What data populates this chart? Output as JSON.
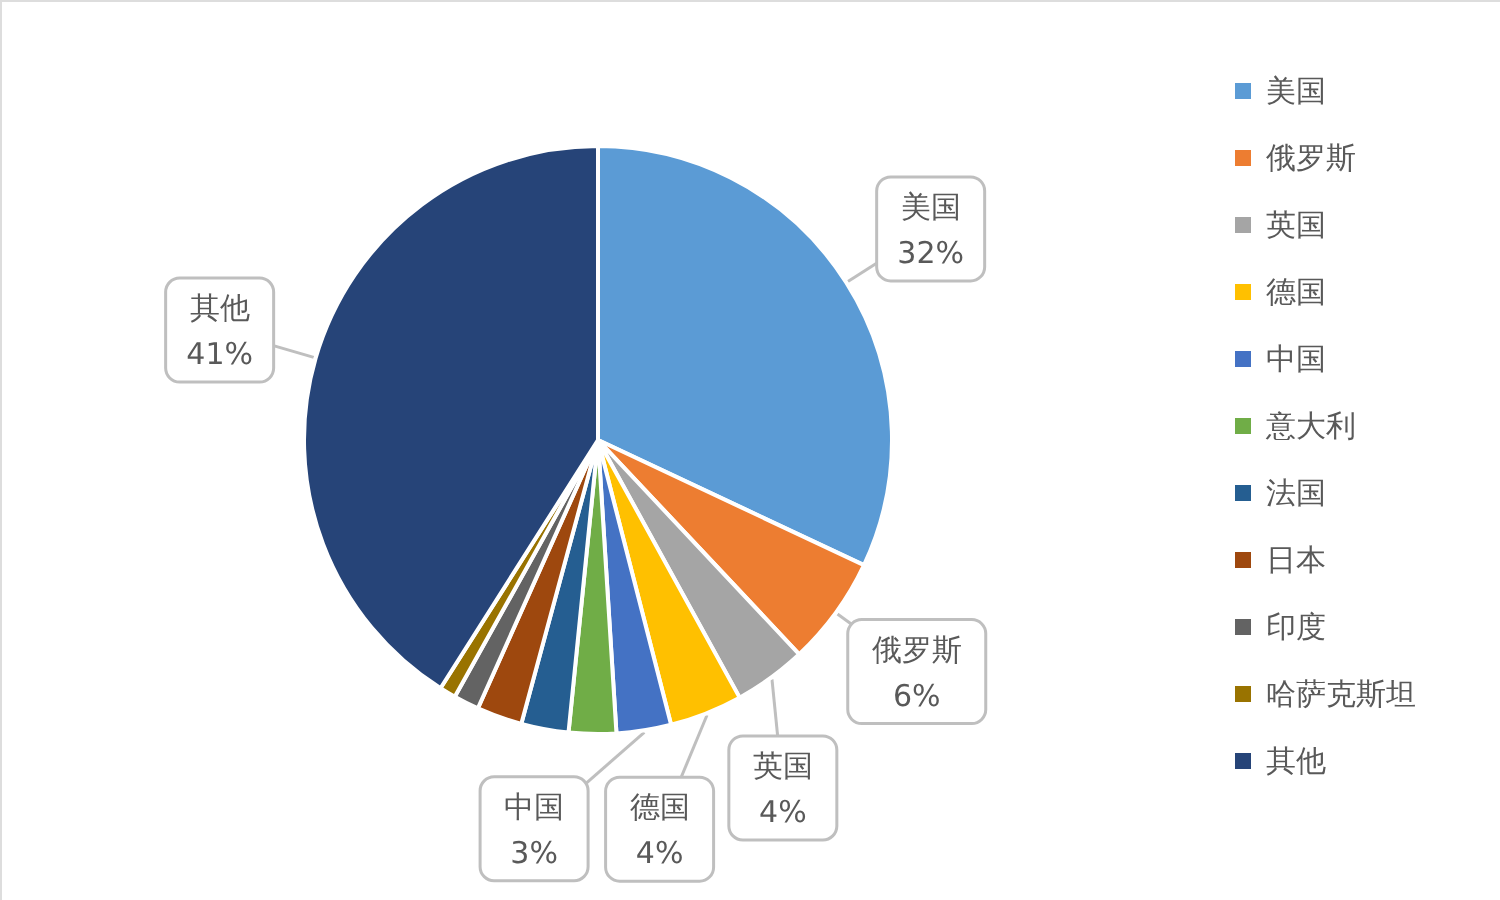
{
  "chart_data": {
    "type": "pie",
    "categories": [
      "美国",
      "俄罗斯",
      "英国",
      "德国",
      "中国",
      "意大利",
      "法国",
      "日本",
      "印度",
      "哈萨克斯坦",
      "其他"
    ],
    "values": [
      32,
      6,
      4,
      4,
      3,
      2.6,
      2.6,
      2.5,
      1.4,
      0.9,
      41
    ],
    "colors": [
      "#5b9bd5",
      "#ed7d31",
      "#a5a5a5",
      "#ffc000",
      "#4472c4",
      "#70ad47",
      "#255e91",
      "#9e480e",
      "#636363",
      "#997300",
      "#264478"
    ],
    "value_labels": [
      "32%",
      "6%",
      "4%",
      "4%",
      "3%",
      null,
      null,
      null,
      null,
      null,
      "41%"
    ],
    "legend": "right"
  }
}
